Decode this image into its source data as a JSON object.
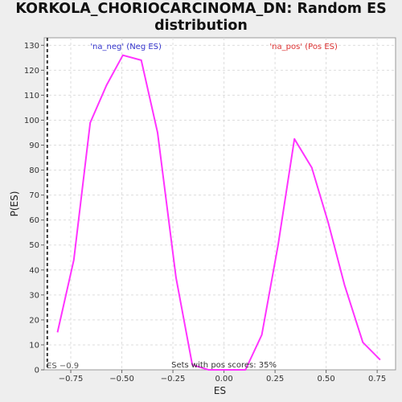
{
  "chart_data": {
    "type": "line",
    "title_line1": "KORKOLA_CHORIOCARCINOMA_DN: Random ES",
    "title_line2": "distribution",
    "xlabel": "ES",
    "ylabel": "P(ES)",
    "xlim": [
      -0.88,
      0.84
    ],
    "ylim": [
      0,
      133
    ],
    "x_ticks": [
      -0.75,
      -0.5,
      -0.25,
      0.0,
      0.25,
      0.5,
      0.75
    ],
    "x_tick_labels": [
      "−0.75",
      "−0.50",
      "−0.25",
      "0.00",
      "0.25",
      "0.50",
      "0.75"
    ],
    "y_ticks": [
      0,
      10,
      20,
      30,
      40,
      50,
      60,
      70,
      80,
      90,
      100,
      110,
      120,
      130
    ],
    "grid": true,
    "series": [
      {
        "color": "#ff33ff",
        "x": [
          -0.815,
          -0.735,
          -0.655,
          -0.575,
          -0.495,
          -0.405,
          -0.325,
          -0.235,
          -0.155,
          -0.075,
          0.0,
          0.105,
          0.185,
          0.265,
          0.345,
          0.43,
          0.51,
          0.59,
          0.68,
          0.765
        ],
        "y": [
          15,
          44,
          99,
          114,
          126,
          124,
          95,
          37,
          2,
          0,
          0,
          0,
          14,
          50,
          92.5,
          81,
          59,
          34,
          11,
          4
        ]
      }
    ],
    "vline": {
      "x": -0.865,
      "style": "dashed",
      "color": "#333333"
    },
    "annotations": {
      "es_label": "ES −0.9",
      "neg_label": "'na_neg' (Neg ES)",
      "neg_color": "#3333cc",
      "pos_label": "'na_pos' (Pos ES)",
      "pos_color": "#dd3333",
      "sets_label": "Sets with pos scores: 35%"
    }
  }
}
